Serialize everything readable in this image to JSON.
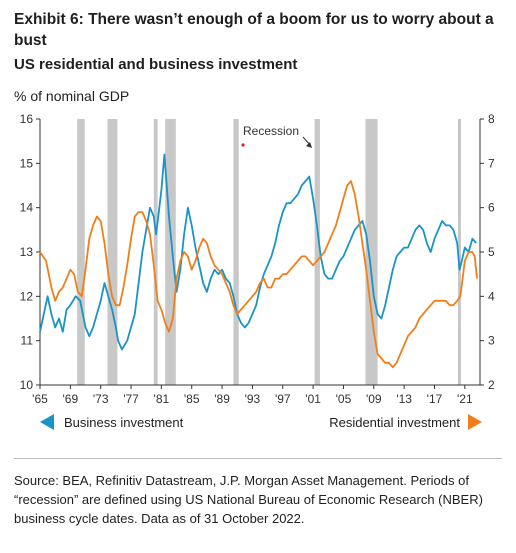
{
  "header": {
    "title": "Exhibit 6: There wasn’t enough of a boom for us to worry about a bust",
    "subtitle": "US residential and business investment",
    "unit": "% of nominal GDP"
  },
  "legend": {
    "left": "Business investment",
    "right": "Residential investment"
  },
  "footer": {
    "source": "Source: BEA, Refinitiv Datastream, J.P. Morgan Asset Management. Periods of “recession” are defined using US National Bureau of Economic Research (NBER) business cycle dates. Data as of 31 October 2022."
  },
  "colors": {
    "business": "#1a94c7",
    "residential": "#f07f1b",
    "recession": "#c8c8c8",
    "marker": "#d6252b"
  },
  "chart_data": {
    "type": "line",
    "xlim": [
      1965,
      2023
    ],
    "x_ticks": [
      1965,
      1969,
      1973,
      1977,
      1981,
      1985,
      1989,
      1993,
      1997,
      2001,
      2005,
      2009,
      2013,
      2017,
      2021
    ],
    "x_tick_labels": [
      "'65",
      "'69",
      "'73",
      "'77",
      "'81",
      "'85",
      "'89",
      "'93",
      "'97",
      "'01",
      "'05",
      "'09",
      "'13",
      "'17",
      "'21"
    ],
    "y_left": {
      "lim": [
        10,
        16
      ],
      "ticks": [
        10,
        11,
        12,
        13,
        14,
        15,
        16
      ]
    },
    "y_right": {
      "lim": [
        2,
        8
      ],
      "ticks": [
        2,
        3,
        4,
        5,
        6,
        7,
        8
      ]
    },
    "annotation": "Recession",
    "recessions": [
      [
        1969.9,
        1970.9
      ],
      [
        1973.9,
        1975.2
      ],
      [
        1980.0,
        1980.5
      ],
      [
        1981.5,
        1982.9
      ],
      [
        1990.5,
        1991.2
      ],
      [
        2001.2,
        2001.9
      ],
      [
        2007.9,
        2009.5
      ],
      [
        2020.1,
        2020.4
      ]
    ],
    "series": [
      {
        "name": "Business investment",
        "axis": "left",
        "x": [
          1965.0,
          1966.0,
          1966.5,
          1967.0,
          1967.5,
          1968.0,
          1968.5,
          1969.0,
          1969.7,
          1970.3,
          1971.0,
          1971.5,
          1972.0,
          1972.5,
          1973.0,
          1973.5,
          1974.0,
          1974.5,
          1975.0,
          1975.3,
          1975.8,
          1976.5,
          1977.0,
          1977.5,
          1978.0,
          1978.5,
          1979.0,
          1979.5,
          1980.0,
          1980.3,
          1980.6,
          1981.0,
          1981.4,
          1981.7,
          1982.0,
          1982.5,
          1983.0,
          1983.5,
          1984.0,
          1984.5,
          1985.0,
          1985.5,
          1986.0,
          1986.5,
          1987.0,
          1987.5,
          1988.0,
          1988.5,
          1989.0,
          1989.5,
          1990.0,
          1990.5,
          1991.0,
          1991.5,
          1992.0,
          1992.5,
          1993.0,
          1993.5,
          1994.0,
          1994.5,
          1995.0,
          1995.5,
          1996.0,
          1996.5,
          1997.0,
          1997.5,
          1998.0,
          1998.5,
          1999.0,
          1999.5,
          2000.0,
          2000.5,
          2001.0,
          2001.5,
          2002.0,
          2002.5,
          2003.0,
          2003.5,
          2004.0,
          2004.5,
          2005.0,
          2005.5,
          2006.0,
          2006.5,
          2007.0,
          2007.5,
          2008.0,
          2008.5,
          2009.0,
          2009.5,
          2010.0,
          2010.5,
          2011.0,
          2011.5,
          2012.0,
          2012.5,
          2013.0,
          2013.5,
          2014.0,
          2014.5,
          2015.0,
          2015.5,
          2016.0,
          2016.5,
          2017.0,
          2017.5,
          2018.0,
          2018.5,
          2019.0,
          2019.5,
          2020.0,
          2020.3,
          2020.6,
          2021.0,
          2021.5,
          2022.0,
          2022.5
        ],
        "y": [
          11.2,
          12.0,
          11.6,
          11.3,
          11.5,
          11.2,
          11.7,
          11.8,
          12.0,
          11.9,
          11.3,
          11.1,
          11.3,
          11.6,
          11.9,
          12.3,
          12.0,
          11.7,
          11.3,
          11.0,
          10.8,
          11.0,
          11.3,
          11.6,
          12.3,
          13.0,
          13.5,
          14.0,
          13.8,
          13.4,
          13.8,
          14.4,
          15.2,
          14.5,
          13.8,
          12.9,
          12.1,
          12.6,
          13.4,
          14.0,
          13.6,
          13.1,
          12.7,
          12.3,
          12.1,
          12.4,
          12.6,
          12.5,
          12.6,
          12.4,
          12.3,
          12.0,
          11.6,
          11.4,
          11.3,
          11.4,
          11.6,
          11.8,
          12.2,
          12.5,
          12.7,
          12.9,
          13.2,
          13.6,
          13.9,
          14.1,
          14.1,
          14.2,
          14.3,
          14.5,
          14.6,
          14.7,
          14.2,
          13.6,
          12.9,
          12.5,
          12.4,
          12.4,
          12.6,
          12.8,
          12.9,
          13.1,
          13.3,
          13.5,
          13.6,
          13.7,
          13.4,
          12.8,
          12.0,
          11.6,
          11.5,
          11.8,
          12.2,
          12.6,
          12.9,
          13.0,
          13.1,
          13.1,
          13.3,
          13.5,
          13.6,
          13.5,
          13.2,
          13.0,
          13.3,
          13.5,
          13.7,
          13.6,
          13.6,
          13.5,
          13.2,
          12.6,
          12.8,
          13.1,
          13.0,
          13.3,
          13.2
        ]
      },
      {
        "name": "Residential investment",
        "axis": "right",
        "x": [
          1965.0,
          1965.8,
          1966.5,
          1967.0,
          1967.5,
          1968.0,
          1968.5,
          1969.0,
          1969.5,
          1970.0,
          1970.5,
          1971.0,
          1971.5,
          1972.0,
          1972.5,
          1973.0,
          1973.5,
          1974.0,
          1974.5,
          1975.0,
          1975.5,
          1976.0,
          1976.5,
          1977.0,
          1977.5,
          1978.0,
          1978.5,
          1979.0,
          1979.5,
          1980.0,
          1980.5,
          1981.0,
          1981.5,
          1982.0,
          1982.5,
          1983.0,
          1983.5,
          1984.0,
          1984.5,
          1985.0,
          1985.5,
          1986.0,
          1986.5,
          1987.0,
          1987.5,
          1988.0,
          1988.5,
          1989.0,
          1989.5,
          1990.0,
          1990.5,
          1991.0,
          1991.5,
          1992.0,
          1992.5,
          1993.0,
          1993.5,
          1994.0,
          1994.5,
          1995.0,
          1995.5,
          1996.0,
          1996.5,
          1997.0,
          1997.5,
          1998.0,
          1998.5,
          1999.0,
          1999.5,
          2000.0,
          2000.5,
          2001.0,
          2001.5,
          2002.0,
          2002.5,
          2003.0,
          2003.5,
          2004.0,
          2004.5,
          2005.0,
          2005.5,
          2006.0,
          2006.5,
          2007.0,
          2007.5,
          2008.0,
          2008.5,
          2009.0,
          2009.5,
          2010.0,
          2010.5,
          2011.0,
          2011.5,
          2012.0,
          2012.5,
          2013.0,
          2013.5,
          2014.0,
          2014.5,
          2015.0,
          2015.5,
          2016.0,
          2016.5,
          2017.0,
          2017.5,
          2018.0,
          2018.5,
          2019.0,
          2019.5,
          2020.0,
          2020.4,
          2020.7,
          2021.0,
          2021.5,
          2022.0,
          2022.3,
          2022.6
        ],
        "y": [
          5.0,
          4.8,
          4.2,
          3.9,
          4.1,
          4.2,
          4.4,
          4.6,
          4.5,
          4.1,
          4.0,
          4.6,
          5.3,
          5.6,
          5.8,
          5.7,
          5.2,
          4.5,
          4.0,
          3.8,
          3.8,
          4.2,
          4.7,
          5.3,
          5.8,
          5.9,
          5.9,
          5.7,
          5.4,
          4.7,
          3.9,
          3.7,
          3.4,
          3.2,
          3.5,
          4.4,
          4.8,
          5.0,
          4.9,
          4.6,
          4.8,
          5.1,
          5.3,
          5.2,
          4.9,
          4.7,
          4.6,
          4.5,
          4.3,
          4.1,
          3.8,
          3.6,
          3.7,
          3.8,
          3.9,
          4.0,
          4.1,
          4.3,
          4.4,
          4.2,
          4.2,
          4.4,
          4.4,
          4.5,
          4.5,
          4.6,
          4.7,
          4.8,
          4.9,
          4.9,
          4.8,
          4.7,
          4.8,
          4.9,
          5.0,
          5.2,
          5.4,
          5.6,
          5.9,
          6.2,
          6.5,
          6.6,
          6.3,
          5.8,
          5.2,
          4.6,
          3.9,
          3.2,
          2.7,
          2.6,
          2.5,
          2.5,
          2.4,
          2.5,
          2.7,
          2.9,
          3.1,
          3.2,
          3.3,
          3.5,
          3.6,
          3.7,
          3.8,
          3.9,
          3.9,
          3.9,
          3.9,
          3.8,
          3.8,
          3.9,
          4.0,
          4.4,
          4.8,
          5.0,
          5.0,
          4.9,
          4.4
        ]
      }
    ]
  }
}
